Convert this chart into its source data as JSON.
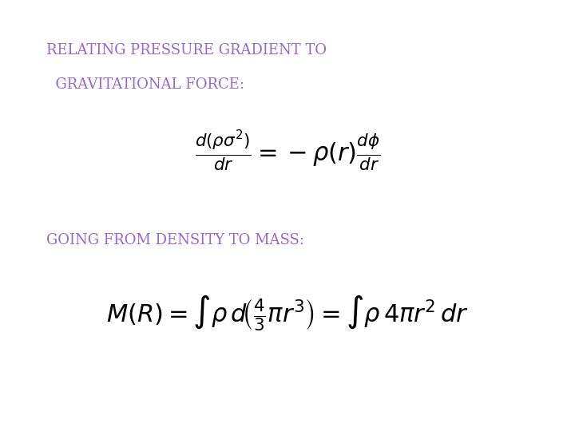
{
  "bg_color": "#ffffff",
  "text_color": "#9966cc",
  "black": "#000000",
  "title1": "RELATING PRESSURE GRADIENT TO",
  "title2": "  GRAVITATIONAL FORCE:",
  "section2": "GOING FROM DENSITY TO MASS:",
  "fig_width": 7.2,
  "fig_height": 5.4,
  "dpi": 100,
  "title_fontsize": 13,
  "eq_fontsize": 22
}
